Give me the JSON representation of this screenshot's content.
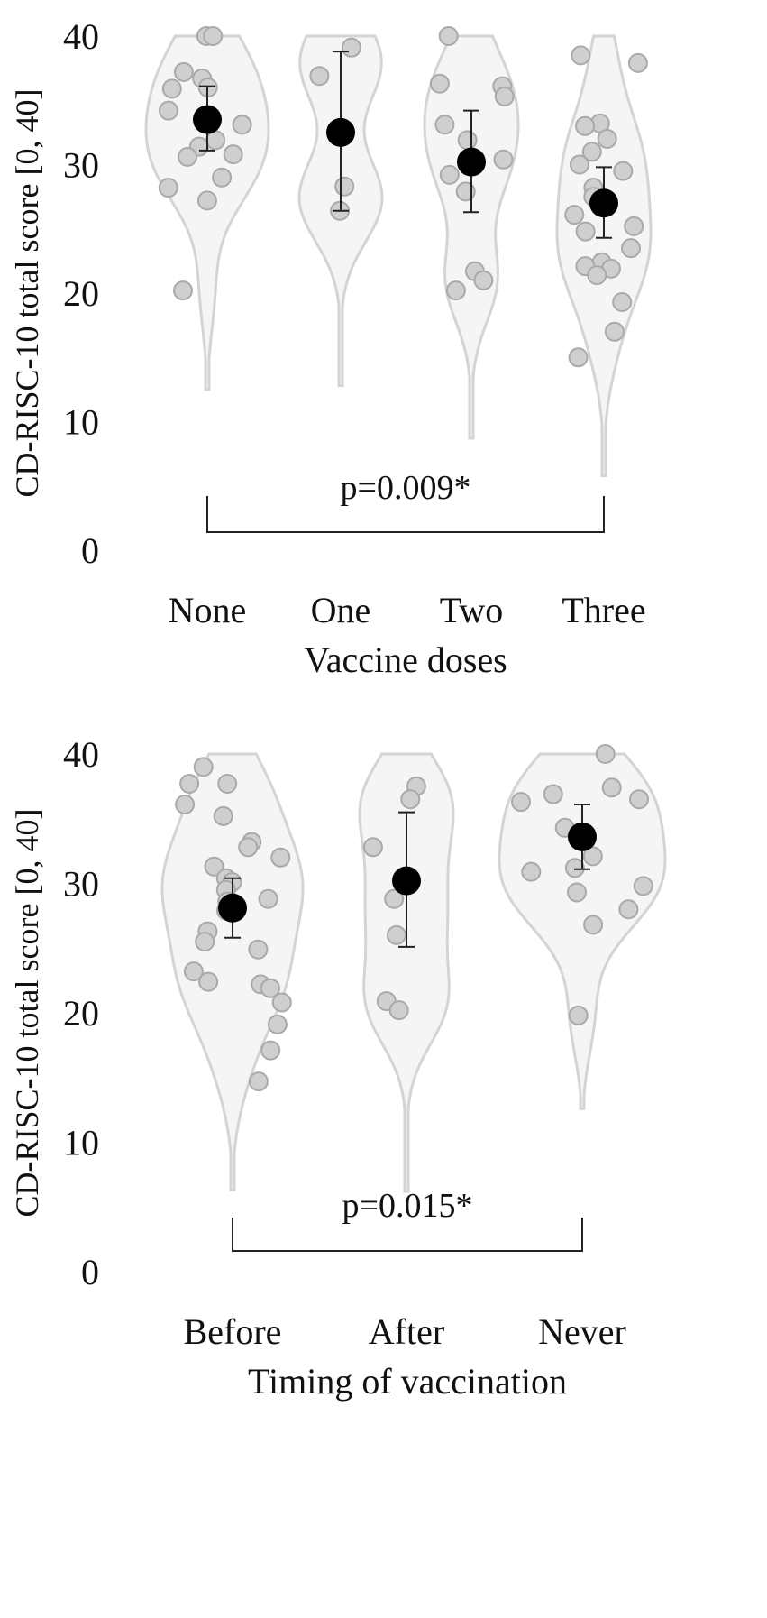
{
  "chart_data": [
    {
      "type": "violin",
      "ylabel": "CD-RISC-10 total score [0, 40]",
      "xlabel": "Vaccine doses",
      "ylim": [
        0,
        40
      ],
      "yticks": [
        0,
        10,
        20,
        30,
        40
      ],
      "categories": [
        "None",
        "One",
        "Two",
        "Three"
      ],
      "points": [
        [
          40,
          40,
          35.9,
          37.2,
          36.7,
          36,
          34.2,
          33.1,
          31.9,
          31.4,
          30.6,
          30.8,
          29,
          28.2,
          27.2,
          20.2
        ],
        [
          39.1,
          36.9,
          28.3,
          26.4
        ],
        [
          40,
          36.3,
          36.1,
          35.3,
          33.1,
          31.9,
          30.4,
          29.2,
          27.9,
          21.7,
          21,
          20.2
        ],
        [
          38.5,
          37.9,
          33.2,
          33,
          32,
          31,
          30,
          29.5,
          28.2,
          27.5,
          26.1,
          25.2,
          24.8,
          23.5,
          22.4,
          22.1,
          21.9,
          21.4,
          19.3,
          17,
          15
        ]
      ],
      "means": [
        33.5,
        32.5,
        30.2,
        27
      ],
      "ci_low": [
        31.1,
        26.4,
        26.3,
        24.3
      ],
      "ci_high": [
        36.1,
        38.8,
        34.2,
        29.8
      ],
      "violin_min": [
        12.5,
        12.8,
        8.7,
        5.8
      ],
      "violin_max": [
        40,
        40,
        40,
        40
      ],
      "comparison": {
        "from": "None",
        "to": "Three",
        "label": "p=0.009*"
      }
    },
    {
      "type": "violin",
      "ylabel": "CD-RISC-10 total score [0, 40]",
      "xlabel": "Timing of vaccination",
      "ylim": [
        0,
        40
      ],
      "yticks": [
        0,
        10,
        20,
        30,
        40
      ],
      "categories": [
        "Before",
        "After",
        "Never"
      ],
      "points": [
        [
          39,
          37.7,
          37.7,
          36.1,
          35.2,
          33.2,
          32.8,
          32,
          31.3,
          30.4,
          30.1,
          29.5,
          28.8,
          28.6,
          27.9,
          26.3,
          25.5,
          24.9,
          23.2,
          22.4,
          22.2,
          21.9,
          20.8,
          19.1,
          17.1,
          14.7
        ],
        [
          37.5,
          36.5,
          32.8,
          28.8,
          26,
          20.9,
          20.2
        ],
        [
          40,
          37.4,
          36.9,
          36.5,
          36.3,
          34.3,
          32.1,
          31.2,
          30.9,
          29.8,
          29.3,
          28,
          26.8,
          19.8
        ]
      ],
      "means": [
        28.1,
        30.2,
        33.6
      ],
      "ci_low": [
        25.8,
        25.1,
        31.1
      ],
      "ci_high": [
        30.4,
        35.5,
        36.1
      ],
      "violin_min": [
        6.3,
        6.2,
        12.6
      ],
      "violin_max": [
        40,
        40,
        40
      ],
      "comparison": {
        "from": "Before",
        "to": "Never",
        "label": "p=0.015*"
      }
    }
  ],
  "colors": {
    "violin_fill": "#f5f5f5",
    "violin_stroke": "#d4d4d4",
    "point_fill": "#cfcfcf",
    "point_stroke": "#a9a9a9",
    "mean": "#000000",
    "axis_text": "#111111"
  }
}
